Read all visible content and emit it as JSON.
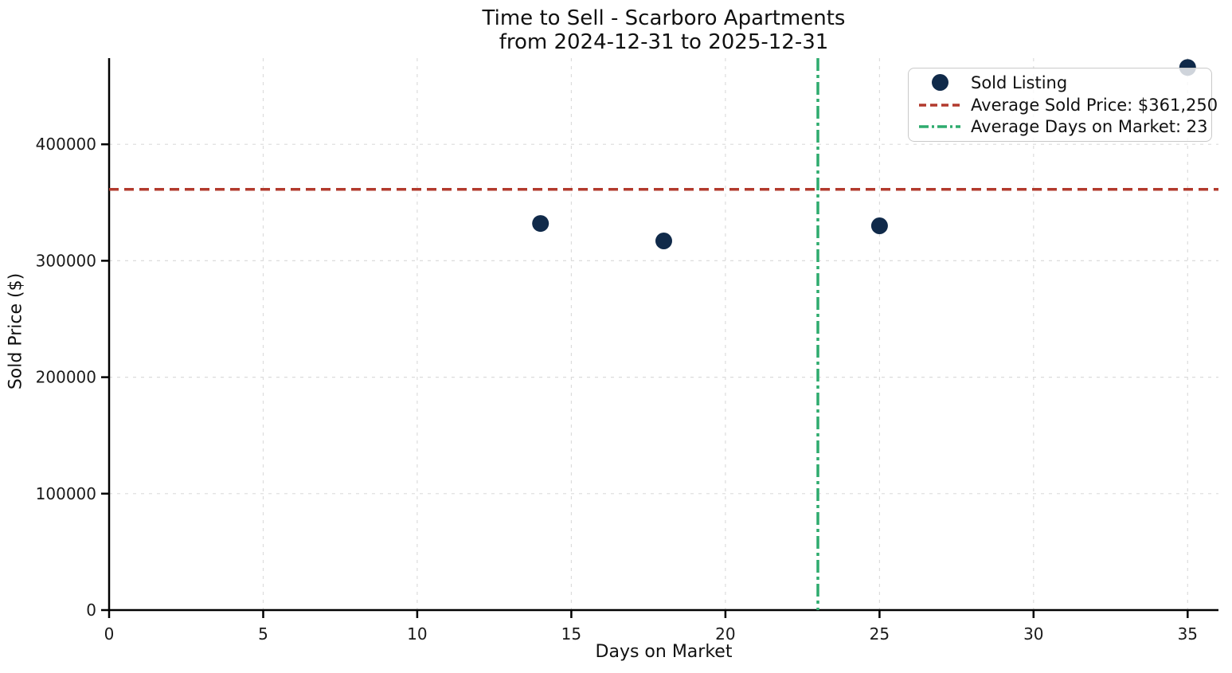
{
  "chart_data": {
    "type": "scatter",
    "title": "Time to Sell - Scarboro Apartments",
    "subtitle": "from 2024-12-31 to 2025-12-31",
    "xlabel": "Days on Market",
    "ylabel": "Sold Price ($)",
    "points": [
      {
        "x": 14,
        "y": 332000
      },
      {
        "x": 18,
        "y": 317000
      },
      {
        "x": 25,
        "y": 330000
      },
      {
        "x": 35,
        "y": 466000
      }
    ],
    "avg_sold_price": 361250,
    "avg_days_on_market": 23,
    "xlim": [
      0,
      36
    ],
    "ylim": [
      0,
      474000
    ],
    "x_ticks": [
      0,
      5,
      10,
      15,
      20,
      25,
      30,
      35
    ],
    "y_ticks": [
      0,
      100000,
      200000,
      300000,
      400000
    ],
    "grid": true,
    "legend_position": "upper right",
    "legend": [
      {
        "label": "Sold Listing",
        "marker": "dot",
        "color": "#102a4a"
      },
      {
        "label": "Average Sold Price: $361,250",
        "marker": "dashed-line",
        "color": "#b23a2d"
      },
      {
        "label": "Average Days on Market: 23",
        "marker": "dashdot-line",
        "color": "#2eab6e"
      }
    ],
    "colors": {
      "point": "#102a4a",
      "avg_price_line": "#b23a2d",
      "avg_days_line": "#2eab6e",
      "grid": "#dcdcdc",
      "axis": "#000000",
      "text": "#1a1a1a",
      "background": "#ffffff"
    }
  }
}
